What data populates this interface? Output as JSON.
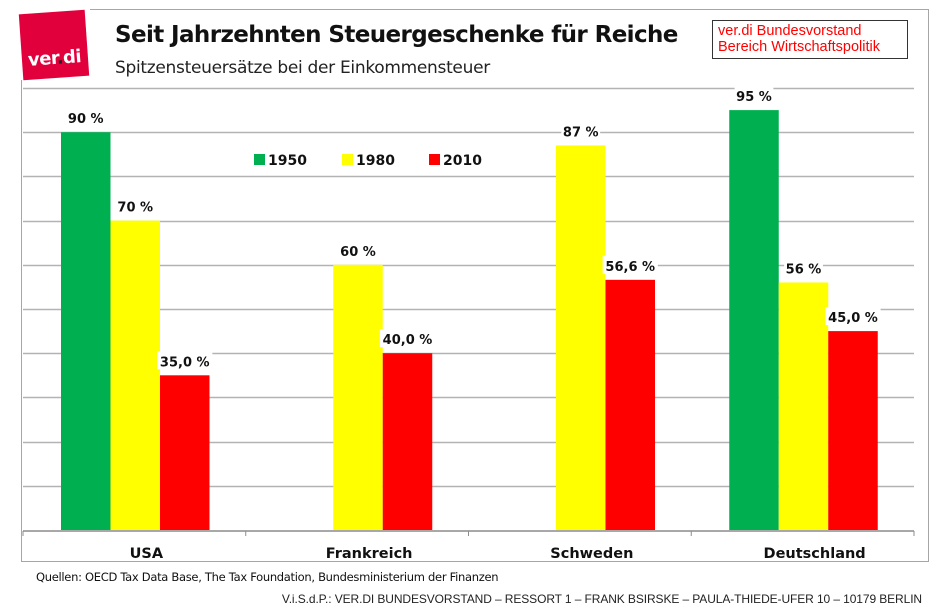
{
  "header": {
    "logo_text_a": "ver",
    "logo_text_dot": ".",
    "logo_text_b": "di",
    "note_line1": "ver.di Bundesvorstand",
    "note_line2": "Bereich Wirtschaftspolitik"
  },
  "footer": {
    "source": "Quellen: OECD Tax Data Base, The Tax Foundation, Bundesministerium der Finanzen",
    "imprint": "V.i.S.d.P.: VER.DI BUNDESVORSTAND – RESSORT 1 – FRANK BSIRSKE – PAULA-THIEDE-UFER 10 – 10179 BERLIN"
  },
  "colors": {
    "brand": "#e2003c",
    "1950": "#00b050",
    "1980": "#ffff00",
    "2010": "#ff0000",
    "grid": "#b3b3b3"
  },
  "chart_data": {
    "type": "bar",
    "title": "Seit Jahrzehnten Steuergeschenke für Reiche",
    "subtitle": "Spitzensteuersätze bei der Einkommensteuer",
    "xlabel": "",
    "ylabel": "",
    "ylim": [
      0,
      100
    ],
    "grid": true,
    "gridline_step": 10,
    "legend_position": "top-center",
    "categories": [
      "USA",
      "Frankreich",
      "Schweden",
      "Deutschland"
    ],
    "series": [
      {
        "name": "1950",
        "color": "#00b050",
        "values": [
          90,
          null,
          null,
          95
        ],
        "labels": [
          "90 %",
          "",
          "",
          "95 %"
        ]
      },
      {
        "name": "1980",
        "color": "#ffff00",
        "values": [
          70,
          60,
          87,
          56
        ],
        "labels": [
          "70 %",
          "60 %",
          "87 %",
          "56 %"
        ]
      },
      {
        "name": "2010",
        "color": "#ff0000",
        "values": [
          35.0,
          40.0,
          56.6,
          45.0
        ],
        "labels": [
          "35,0 %",
          "40,0 %",
          "56,6 %",
          "45,0 %"
        ]
      }
    ]
  }
}
